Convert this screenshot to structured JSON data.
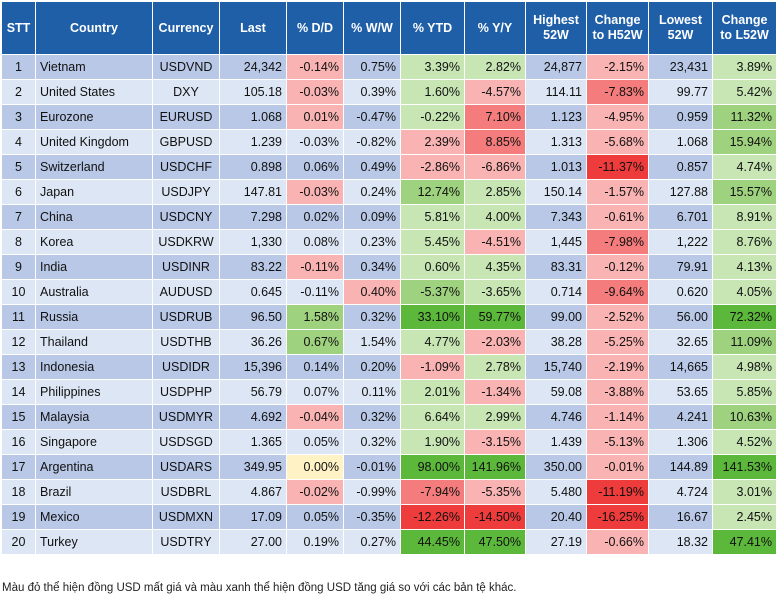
{
  "colors": {
    "header_bg": "#1f5fa8",
    "odd_row_bg": "#b8c8e6",
    "even_row_bg": "#dde6f4",
    "pink": "#f9b3b3",
    "red_light": "#f47c7c",
    "red_strong": "#ee3b3b",
    "green_light": "#c7e6b4",
    "green_mid": "#9fd27f",
    "green_strong": "#5cb83a",
    "yellow": "#fff2c4"
  },
  "headers": [
    "STT",
    "Country",
    "Currency",
    "Last",
    "% D/D",
    "% W/W",
    "% YTD",
    "% Y/Y",
    "Highest 52W",
    "Change to H52W",
    "Lowest 52W",
    "Change to L52W"
  ],
  "rows": [
    {
      "stt": "1",
      "country": "Vietnam",
      "currency": "USDVND",
      "last": "24,342",
      "dd": "-0.14%",
      "ww": "0.75%",
      "ytd": "3.39%",
      "yy": "2.82%",
      "high": "24,877",
      "chh": "-2.15%",
      "low": "23,431",
      "chl": "3.89%",
      "c": {
        "dd": "pink",
        "ww": "",
        "ytd": "green_light",
        "yy": "green_light",
        "chh": "pink",
        "chl": "green_light"
      }
    },
    {
      "stt": "2",
      "country": "United States",
      "currency": "DXY",
      "last": "105.18",
      "dd": "-0.03%",
      "ww": "0.39%",
      "ytd": "1.60%",
      "yy": "-4.57%",
      "high": "114.11",
      "chh": "-7.83%",
      "low": "99.77",
      "chl": "5.42%",
      "c": {
        "dd": "pink",
        "ww": "",
        "ytd": "green_light",
        "yy": "pink",
        "chh": "red_light",
        "chl": "green_light"
      }
    },
    {
      "stt": "3",
      "country": "Eurozone",
      "currency": "EURUSD",
      "last": "1.068",
      "dd": "0.01%",
      "ww": "-0.47%",
      "ytd": "-0.22%",
      "yy": "7.10%",
      "high": "1.123",
      "chh": "-4.95%",
      "low": "0.959",
      "chl": "11.32%",
      "c": {
        "dd": "pink",
        "ww": "",
        "ytd": "green_light",
        "yy": "red_light",
        "chh": "pink",
        "chl": "green_mid"
      }
    },
    {
      "stt": "4",
      "country": "United Kingdom",
      "currency": "GBPUSD",
      "last": "1.239",
      "dd": "-0.03%",
      "ww": "-0.82%",
      "ytd": "2.39%",
      "yy": "8.85%",
      "high": "1.313",
      "chh": "-5.68%",
      "low": "1.068",
      "chl": "15.94%",
      "c": {
        "dd": "",
        "ww": "",
        "ytd": "pink",
        "yy": "red_light",
        "chh": "pink",
        "chl": "green_mid"
      }
    },
    {
      "stt": "5",
      "country": "Switzerland",
      "currency": "USDCHF",
      "last": "0.898",
      "dd": "0.06%",
      "ww": "0.49%",
      "ytd": "-2.86%",
      "yy": "-6.86%",
      "high": "1.013",
      "chh": "-11.37%",
      "low": "0.857",
      "chl": "4.74%",
      "c": {
        "dd": "",
        "ww": "",
        "ytd": "pink",
        "yy": "pink",
        "chh": "red_strong",
        "chl": "green_light"
      }
    },
    {
      "stt": "6",
      "country": "Japan",
      "currency": "USDJPY",
      "last": "147.81",
      "dd": "-0.03%",
      "ww": "0.24%",
      "ytd": "12.74%",
      "yy": "2.85%",
      "high": "150.14",
      "chh": "-1.57%",
      "low": "127.88",
      "chl": "15.57%",
      "c": {
        "dd": "pink",
        "ww": "",
        "ytd": "green_mid",
        "yy": "green_light",
        "chh": "pink",
        "chl": "green_mid"
      }
    },
    {
      "stt": "7",
      "country": "China",
      "currency": "USDCNY",
      "last": "7.298",
      "dd": "0.02%",
      "ww": "0.09%",
      "ytd": "5.81%",
      "yy": "4.00%",
      "high": "7.343",
      "chh": "-0.61%",
      "low": "6.701",
      "chl": "8.91%",
      "c": {
        "dd": "",
        "ww": "",
        "ytd": "green_light",
        "yy": "green_light",
        "chh": "pink",
        "chl": "green_light"
      }
    },
    {
      "stt": "8",
      "country": "Korea",
      "currency": "USDKRW",
      "last": "1,330",
      "dd": "0.08%",
      "ww": "0.23%",
      "ytd": "5.45%",
      "yy": "-4.51%",
      "high": "1,445",
      "chh": "-7.98%",
      "low": "1,222",
      "chl": "8.76%",
      "c": {
        "dd": "",
        "ww": "",
        "ytd": "green_light",
        "yy": "pink",
        "chh": "red_light",
        "chl": "green_light"
      }
    },
    {
      "stt": "9",
      "country": "India",
      "currency": "USDINR",
      "last": "83.22",
      "dd": "-0.11%",
      "ww": "0.34%",
      "ytd": "0.60%",
      "yy": "4.35%",
      "high": "83.31",
      "chh": "-0.12%",
      "low": "79.91",
      "chl": "4.13%",
      "c": {
        "dd": "pink",
        "ww": "",
        "ytd": "green_light",
        "yy": "green_light",
        "chh": "pink",
        "chl": "green_light"
      }
    },
    {
      "stt": "10",
      "country": "Australia",
      "currency": "AUDUSD",
      "last": "0.645",
      "dd": "-0.11%",
      "ww": "0.40%",
      "ytd": "-5.37%",
      "yy": "-3.65%",
      "high": "0.714",
      "chh": "-9.64%",
      "low": "0.620",
      "chl": "4.05%",
      "c": {
        "dd": "",
        "ww": "pink",
        "ytd": "green_mid",
        "yy": "green_light",
        "chh": "red_light",
        "chl": "green_light"
      }
    },
    {
      "stt": "11",
      "country": "Russia",
      "currency": "USDRUB",
      "last": "96.50",
      "dd": "1.58%",
      "ww": "0.32%",
      "ytd": "33.10%",
      "yy": "59.77%",
      "high": "99.00",
      "chh": "-2.52%",
      "low": "56.00",
      "chl": "72.32%",
      "c": {
        "dd": "green_mid",
        "ww": "",
        "ytd": "green_strong",
        "yy": "green_strong",
        "chh": "pink",
        "chl": "green_strong"
      }
    },
    {
      "stt": "12",
      "country": "Thailand",
      "currency": "USDTHB",
      "last": "36.26",
      "dd": "0.67%",
      "ww": "1.54%",
      "ytd": "4.77%",
      "yy": "-2.03%",
      "high": "38.28",
      "chh": "-5.25%",
      "low": "32.65",
      "chl": "11.09%",
      "c": {
        "dd": "green_mid",
        "ww": "",
        "ytd": "green_light",
        "yy": "pink",
        "chh": "pink",
        "chl": "green_mid"
      }
    },
    {
      "stt": "13",
      "country": "Indonesia",
      "currency": "USDIDR",
      "last": "15,396",
      "dd": "0.14%",
      "ww": "0.20%",
      "ytd": "-1.09%",
      "yy": "2.78%",
      "high": "15,740",
      "chh": "-2.19%",
      "low": "14,665",
      "chl": "4.98%",
      "c": {
        "dd": "",
        "ww": "",
        "ytd": "pink",
        "yy": "green_light",
        "chh": "pink",
        "chl": "green_light"
      }
    },
    {
      "stt": "14",
      "country": "Philippines",
      "currency": "USDPHP",
      "last": "56.79",
      "dd": "0.07%",
      "ww": "0.11%",
      "ytd": "2.01%",
      "yy": "-1.34%",
      "high": "59.08",
      "chh": "-3.88%",
      "low": "53.65",
      "chl": "5.85%",
      "c": {
        "dd": "",
        "ww": "",
        "ytd": "green_light",
        "yy": "pink",
        "chh": "pink",
        "chl": "green_light"
      }
    },
    {
      "stt": "15",
      "country": "Malaysia",
      "currency": "USDMYR",
      "last": "4.692",
      "dd": "-0.04%",
      "ww": "0.32%",
      "ytd": "6.64%",
      "yy": "2.99%",
      "high": "4.746",
      "chh": "-1.14%",
      "low": "4.241",
      "chl": "10.63%",
      "c": {
        "dd": "pink",
        "ww": "",
        "ytd": "green_light",
        "yy": "green_light",
        "chh": "pink",
        "chl": "green_mid"
      }
    },
    {
      "stt": "16",
      "country": "Singapore",
      "currency": "USDSGD",
      "last": "1.365",
      "dd": "0.05%",
      "ww": "0.32%",
      "ytd": "1.90%",
      "yy": "-3.15%",
      "high": "1.439",
      "chh": "-5.13%",
      "low": "1.306",
      "chl": "4.52%",
      "c": {
        "dd": "",
        "ww": "",
        "ytd": "green_light",
        "yy": "pink",
        "chh": "pink",
        "chl": "green_light"
      }
    },
    {
      "stt": "17",
      "country": "Argentina",
      "currency": "USDARS",
      "last": "349.95",
      "dd": "0.00%",
      "ww": "-0.01%",
      "ytd": "98.00%",
      "yy": "141.96%",
      "high": "350.00",
      "chh": "-0.01%",
      "low": "144.89",
      "chl": "141.53%",
      "c": {
        "dd": "yellow",
        "ww": "",
        "ytd": "green_strong",
        "yy": "green_strong",
        "chh": "pink",
        "chl": "green_strong"
      }
    },
    {
      "stt": "18",
      "country": "Brazil",
      "currency": "USDBRL",
      "last": "4.867",
      "dd": "-0.02%",
      "ww": "-0.99%",
      "ytd": "-7.94%",
      "yy": "-5.35%",
      "high": "5.480",
      "chh": "-11.19%",
      "low": "4.724",
      "chl": "3.01%",
      "c": {
        "dd": "pink",
        "ww": "",
        "ytd": "red_light",
        "yy": "pink",
        "chh": "red_strong",
        "chl": "green_light"
      }
    },
    {
      "stt": "19",
      "country": "Mexico",
      "currency": "USDMXN",
      "last": "17.09",
      "dd": "0.05%",
      "ww": "-0.35%",
      "ytd": "-12.26%",
      "yy": "-14.50%",
      "high": "20.40",
      "chh": "-16.25%",
      "low": "16.67",
      "chl": "2.45%",
      "c": {
        "dd": "",
        "ww": "",
        "ytd": "red_strong",
        "yy": "red_strong",
        "chh": "red_strong",
        "chl": "green_light"
      }
    },
    {
      "stt": "20",
      "country": "Turkey",
      "currency": "USDTRY",
      "last": "27.00",
      "dd": "0.19%",
      "ww": "0.27%",
      "ytd": "44.45%",
      "yy": "47.50%",
      "high": "27.19",
      "chh": "-0.66%",
      "low": "18.32",
      "chl": "47.41%",
      "c": {
        "dd": "",
        "ww": "",
        "ytd": "green_strong",
        "yy": "green_strong",
        "chh": "pink",
        "chl": "green_strong"
      }
    }
  ],
  "footnote": "Màu đỏ thể hiện đồng USD mất giá và màu xanh thể hiện đồng USD tăng giá so với các bản tệ khác."
}
